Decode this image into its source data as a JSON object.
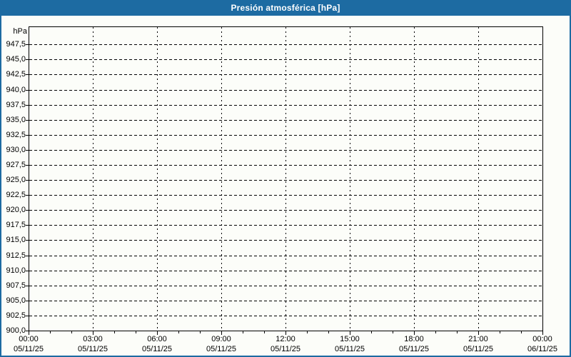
{
  "window": {
    "title": "Presión atmosférica [hPa]"
  },
  "colors": {
    "accent": "#1d6ba2",
    "titlebar_text": "#ffffff",
    "background": "#fcfdf9",
    "grid": "#000000",
    "text": "#000000"
  },
  "chart_data": {
    "type": "line",
    "title": "Presión atmosférica [hPa]",
    "xlabel": "",
    "ylabel": "hPa",
    "ylim": [
      900,
      950.5
    ],
    "xlim_hours": [
      0,
      24
    ],
    "x_major_step_hours": 3,
    "x_minor_step_hours": 1,
    "grid": "dashed",
    "legend": "none",
    "series": [],
    "y_ticks": [
      {
        "value": 947.5,
        "label": "947,5"
      },
      {
        "value": 945.0,
        "label": "945,0"
      },
      {
        "value": 942.5,
        "label": "942,5"
      },
      {
        "value": 940.0,
        "label": "940,0"
      },
      {
        "value": 937.5,
        "label": "937,5"
      },
      {
        "value": 935.0,
        "label": "935,0"
      },
      {
        "value": 932.5,
        "label": "932,5"
      },
      {
        "value": 930.0,
        "label": "930,0"
      },
      {
        "value": 927.5,
        "label": "927,5"
      },
      {
        "value": 925.0,
        "label": "925,0"
      },
      {
        "value": 922.5,
        "label": "922,5"
      },
      {
        "value": 920.0,
        "label": "920,0"
      },
      {
        "value": 917.5,
        "label": "917,5"
      },
      {
        "value": 915.0,
        "label": "915,0"
      },
      {
        "value": 912.5,
        "label": "912,5"
      },
      {
        "value": 910.0,
        "label": "910,0"
      },
      {
        "value": 907.5,
        "label": "907,5"
      },
      {
        "value": 905.0,
        "label": "905,0"
      },
      {
        "value": 902.5,
        "label": "902,5"
      },
      {
        "value": 900.0,
        "label": "900,0"
      }
    ],
    "x_ticks": [
      {
        "hour": 0,
        "time": "00:00",
        "date": "05/11/25"
      },
      {
        "hour": 3,
        "time": "03:00",
        "date": "05/11/25"
      },
      {
        "hour": 6,
        "time": "06:00",
        "date": "05/11/25"
      },
      {
        "hour": 9,
        "time": "09:00",
        "date": "05/11/25"
      },
      {
        "hour": 12,
        "time": "12:00",
        "date": "05/11/25"
      },
      {
        "hour": 15,
        "time": "15:00",
        "date": "05/11/25"
      },
      {
        "hour": 18,
        "time": "18:00",
        "date": "05/11/25"
      },
      {
        "hour": 21,
        "time": "21:00",
        "date": "05/11/25"
      },
      {
        "hour": 24,
        "time": "00:00",
        "date": "06/11/25"
      }
    ]
  }
}
